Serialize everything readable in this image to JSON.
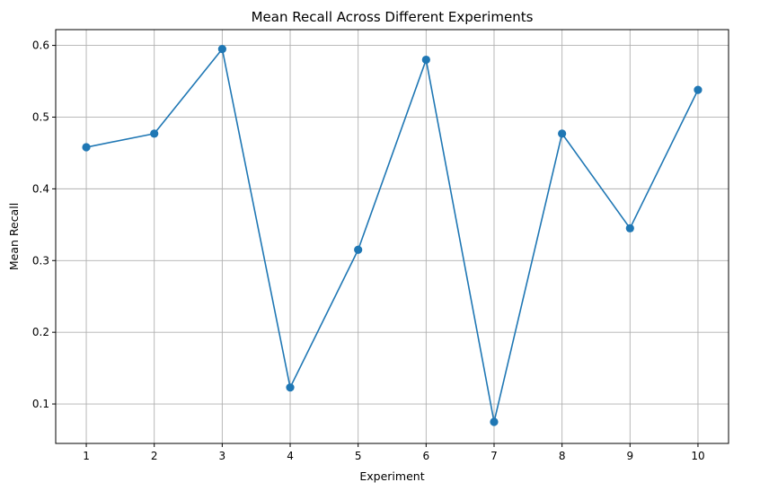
{
  "chart_data": {
    "type": "line",
    "title": "Mean Recall Across Different Experiments",
    "xlabel": "Experiment",
    "ylabel": "Mean Recall",
    "x": [
      1,
      2,
      3,
      4,
      5,
      6,
      7,
      8,
      9,
      10
    ],
    "x_ticks": [
      "1",
      "2",
      "3",
      "4",
      "5",
      "6",
      "7",
      "8",
      "9",
      "10"
    ],
    "y_ticks": [
      "0.1",
      "0.2",
      "0.3",
      "0.4",
      "0.5",
      "0.6"
    ],
    "y_tick_values": [
      0.1,
      0.2,
      0.3,
      0.4,
      0.5,
      0.6
    ],
    "series": [
      {
        "values": [
          0.458,
          0.477,
          0.595,
          0.123,
          0.315,
          0.58,
          0.075,
          0.477,
          0.345,
          0.538
        ],
        "color": "#1f77b4",
        "marker": "circle"
      }
    ],
    "xlim": [
      0.55,
      10.45
    ],
    "ylim": [
      0.045,
      0.622
    ],
    "grid": true
  }
}
